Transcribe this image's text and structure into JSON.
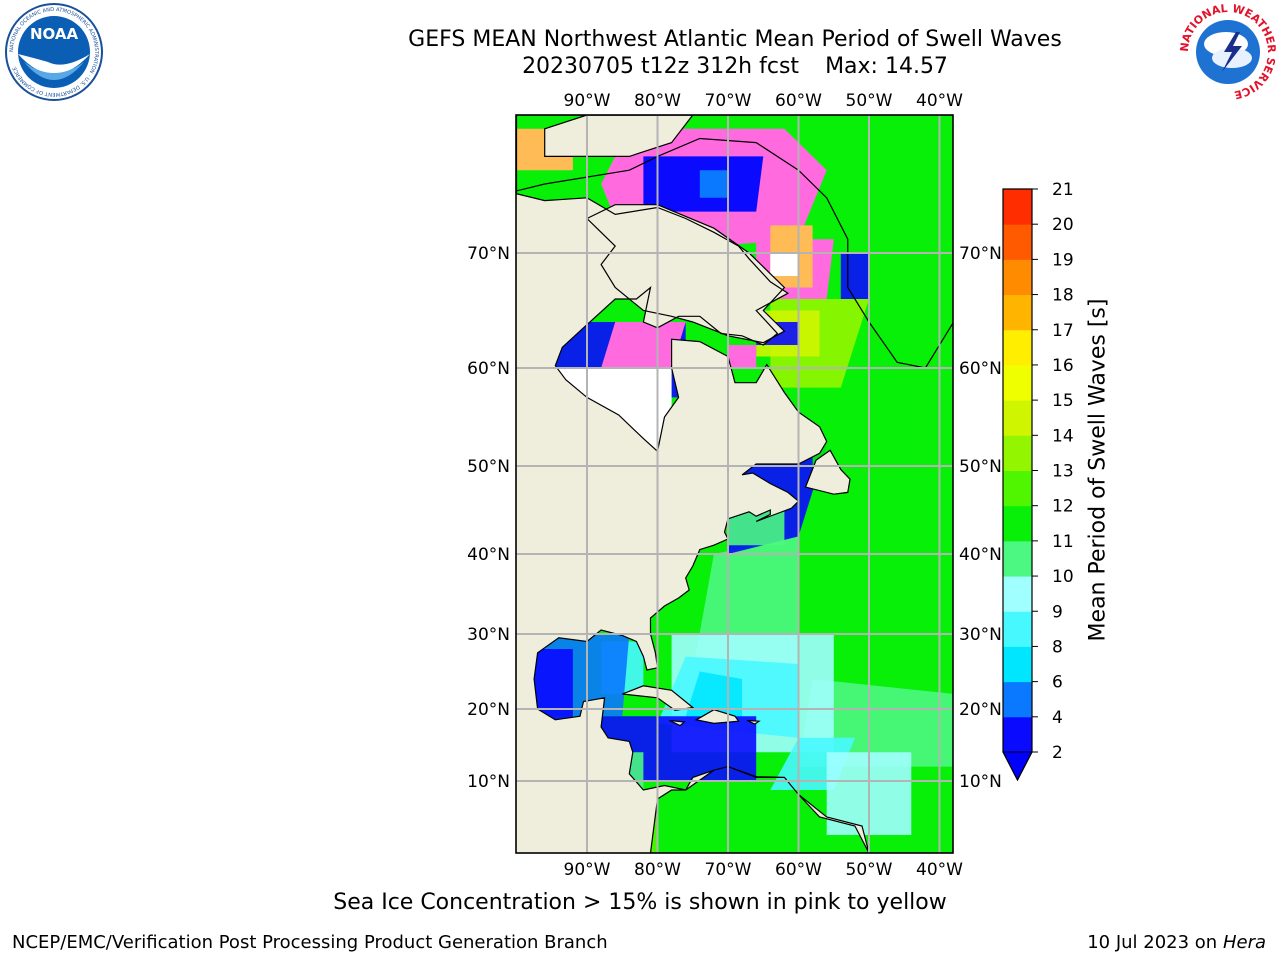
{
  "header": {
    "title_line1": "GEFS MEAN Northwest Atlantic Mean Period of Swell Waves",
    "title_run": "20230705 t12z 312h fcst",
    "title_max": "Max: 14.57"
  },
  "logos": {
    "noaa_text": "NOAA",
    "noaa_ring_text": "NATIONAL OCEANIC AND ATMOSPHERIC ADMINISTRATION · U.S. DEPARTMENT OF COMMERCE",
    "nws_ring_text": "NATIONAL WEATHER SERVICE"
  },
  "map": {
    "lon_ticks": [
      "90°W",
      "80°W",
      "70°W",
      "60°W",
      "50°W",
      "40°W"
    ],
    "lat_ticks": [
      "70°N",
      "60°N",
      "50°N",
      "40°N",
      "30°N",
      "20°N",
      "10°N"
    ],
    "extent": {
      "lon": [
        -100,
        -38
      ],
      "lat": [
        2,
        80
      ]
    },
    "colors": {
      "land": "#efeddc",
      "ice_pink": "#ff6adf",
      "ice_orange": "#ffbb55",
      "no_data": "#ffffff",
      "coast": "#000000",
      "grid": "#b4b4b4"
    }
  },
  "colorbar": {
    "label": "Mean Period of Swell Waves [s]",
    "ticks": [
      "2",
      "4",
      "6",
      "8",
      "9",
      "10",
      "11",
      "12",
      "13",
      "14",
      "15",
      "16",
      "17",
      "18",
      "19",
      "20",
      "21"
    ],
    "colors": [
      "#0a0aff",
      "#0a78ff",
      "#00e6ff",
      "#48f8ff",
      "#a0ffff",
      "#4cf782",
      "#08ef08",
      "#50f500",
      "#94f500",
      "#cff500",
      "#f0ff00",
      "#ffee00",
      "#ffb400",
      "#ff8c00",
      "#ff5a00",
      "#ff2d00"
    ],
    "under_color": "#0000ff"
  },
  "footer": {
    "note": "Sea Ice Concentration > 15% is shown in pink to yellow",
    "credit": "NCEP/EMC/Verification Post Processing Product Generation Branch",
    "date": "10 Jul 2023 on",
    "host": "Hera"
  }
}
